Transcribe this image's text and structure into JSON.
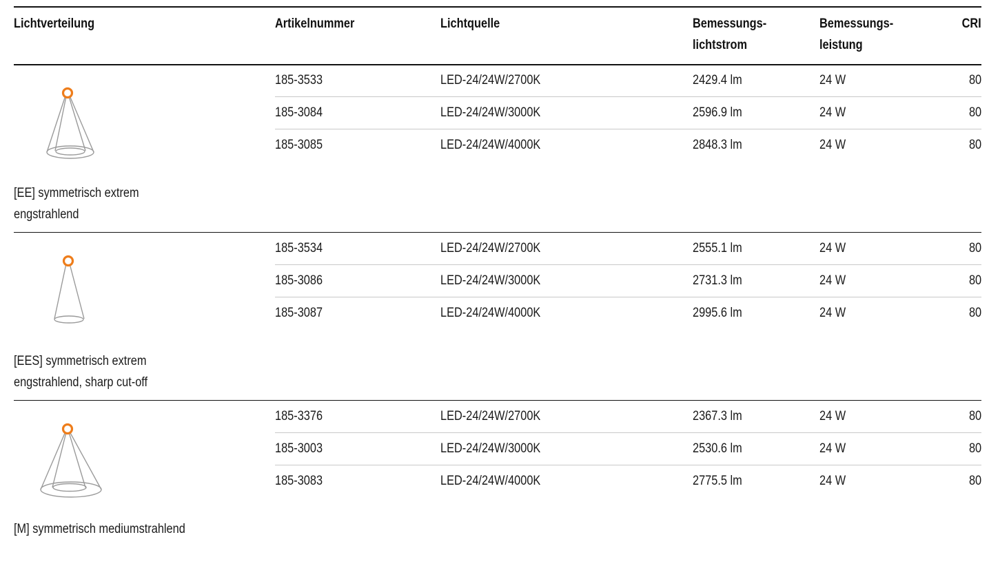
{
  "headers": {
    "distribution": "Lichtverteilung",
    "article": "Artikelnummer",
    "source": "Lichtquelle",
    "flux_line1": "Bemessungs-",
    "flux_line2": "lichtstrom",
    "power_line1": "Bemessungs-",
    "power_line2": "leistung",
    "cri": "CRI"
  },
  "groups": [
    {
      "icon": "extreme-narrow-beam-icon",
      "label": "[EE] symmetrisch extrem engstrahlend",
      "rows": [
        {
          "article": "185-3533",
          "source": "LED-24/24W/2700K",
          "flux": "2429.4 lm",
          "power": "24 W",
          "cri": "80"
        },
        {
          "article": "185-3084",
          "source": "LED-24/24W/3000K",
          "flux": "2596.9 lm",
          "power": "24 W",
          "cri": "80"
        },
        {
          "article": "185-3085",
          "source": "LED-24/24W/4000K",
          "flux": "2848.3 lm",
          "power": "24 W",
          "cri": "80"
        }
      ]
    },
    {
      "icon": "extreme-narrow-sharp-cutoff-beam-icon",
      "label": "[EES] symmetrisch extrem engstrahlend, sharp cut-off",
      "rows": [
        {
          "article": "185-3534",
          "source": "LED-24/24W/2700K",
          "flux": "2555.1 lm",
          "power": "24 W",
          "cri": "80"
        },
        {
          "article": "185-3086",
          "source": "LED-24/24W/3000K",
          "flux": "2731.3 lm",
          "power": "24 W",
          "cri": "80"
        },
        {
          "article": "185-3087",
          "source": "LED-24/24W/4000K",
          "flux": "2995.6 lm",
          "power": "24 W",
          "cri": "80"
        }
      ]
    },
    {
      "icon": "medium-beam-icon",
      "label": "[M] symmetrisch mediumstrahlend",
      "rows": [
        {
          "article": "185-3376",
          "source": "LED-24/24W/2700K",
          "flux": "2367.3 lm",
          "power": "24 W",
          "cri": "80"
        },
        {
          "article": "185-3003",
          "source": "LED-24/24W/3000K",
          "flux": "2530.6 lm",
          "power": "24 W",
          "cri": "80"
        },
        {
          "article": "185-3083",
          "source": "LED-24/24W/4000K",
          "flux": "2775.5 lm",
          "power": "24 W",
          "cri": "80"
        }
      ]
    }
  ],
  "colors": {
    "lamp_orange": "#ee7d1b",
    "cone_gray": "#9a9a9a",
    "rule_dark": "#111111",
    "rule_light": "#c8c8c8"
  }
}
